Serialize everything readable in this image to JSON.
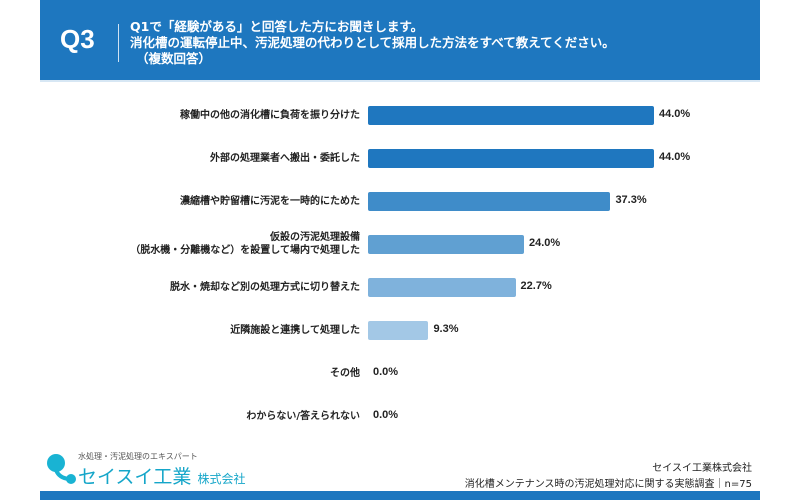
{
  "header": {
    "q": "Q3",
    "lines": [
      "Q1で「経験がある」と回答した方にお聞きします。",
      "消化槽の運転停止中、汚泥処理の代わりとして採用した方法をすべて教えてください。",
      "（複数回答）"
    ]
  },
  "chart_data": {
    "type": "bar",
    "orientation": "horizontal",
    "categories": [
      "稼働中の他の消化槽に負荷を振り分けた",
      "外部の処理業者へ搬出・委託した",
      "濃縮槽や貯留槽に汚泥を一時的にためた",
      "仮設の汚泥処理設備\n（脱水機・分離機など）を設置して場内で処理した",
      "脱水・焼却など別の処理方式に切り替えた",
      "近隣施設と連携して処理した",
      "その他",
      "わからない/答えられない"
    ],
    "values": [
      44.0,
      44.0,
      37.3,
      24.0,
      22.7,
      9.3,
      0.0,
      0.0
    ],
    "value_labels": [
      "44.0%",
      "44.0%",
      "37.3%",
      "24.0%",
      "22.7%",
      "9.3%",
      "0.0%",
      "0.0%"
    ],
    "colors": [
      "#1f77bf",
      "#1f77bf",
      "#3f8cc9",
      "#60a0d2",
      "#7fb2dc",
      "#a3c8e6",
      "#a3c8e6",
      "#a3c8e6"
    ],
    "unit": "%"
  },
  "footer": {
    "tagline": "水処理・汚泥処理のエキスパート",
    "brand": "セイスイ工業",
    "brand_suffix": "株式会社",
    "company": "セイスイ工業株式会社",
    "survey": "消化槽メンテナンス時の汚泥処理対応に関する実態調査｜n=75"
  }
}
